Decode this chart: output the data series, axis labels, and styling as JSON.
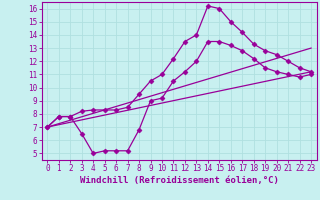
{
  "xlabel": "Windchill (Refroidissement éolien,°C)",
  "bg_color": "#c8f0f0",
  "line_color": "#990099",
  "grid_color": "#b0e0e0",
  "xlim": [
    -0.5,
    23.5
  ],
  "ylim": [
    4.5,
    16.5
  ],
  "xticks": [
    0,
    1,
    2,
    3,
    4,
    5,
    6,
    7,
    8,
    9,
    10,
    11,
    12,
    13,
    14,
    15,
    16,
    17,
    18,
    19,
    20,
    21,
    22,
    23
  ],
  "yticks": [
    5,
    6,
    7,
    8,
    9,
    10,
    11,
    12,
    13,
    14,
    15,
    16
  ],
  "line1_x": [
    0,
    1,
    2,
    3,
    4,
    5,
    6,
    7,
    8,
    9,
    10,
    11,
    12,
    13,
    14,
    15,
    16,
    17,
    18,
    19,
    20,
    21,
    22,
    23
  ],
  "line1_y": [
    7.0,
    7.8,
    7.8,
    8.2,
    8.3,
    8.3,
    8.3,
    8.5,
    9.5,
    10.5,
    11.0,
    12.2,
    13.5,
    14.0,
    16.2,
    16.0,
    15.0,
    14.2,
    13.3,
    12.8,
    12.5,
    12.0,
    11.5,
    11.2
  ],
  "line2_x": [
    0,
    1,
    2,
    3,
    4,
    5,
    6,
    7,
    8,
    9,
    10,
    11,
    12,
    13,
    14,
    15,
    16,
    17,
    18,
    19,
    20,
    21,
    22,
    23
  ],
  "line2_y": [
    7.0,
    7.8,
    7.8,
    6.5,
    5.0,
    5.2,
    5.2,
    5.2,
    6.8,
    9.0,
    9.2,
    10.5,
    11.2,
    12.0,
    13.5,
    13.5,
    13.2,
    12.8,
    12.2,
    11.5,
    11.2,
    11.0,
    10.8,
    11.0
  ],
  "line3_x": [
    0,
    23
  ],
  "line3_y": [
    7.0,
    11.2
  ],
  "line4_x": [
    0,
    23
  ],
  "line4_y": [
    7.0,
    13.0
  ],
  "marker": "D",
  "markersize": 2.5,
  "linewidth": 0.9,
  "xlabel_fontsize": 6.5,
  "tick_fontsize": 5.5
}
